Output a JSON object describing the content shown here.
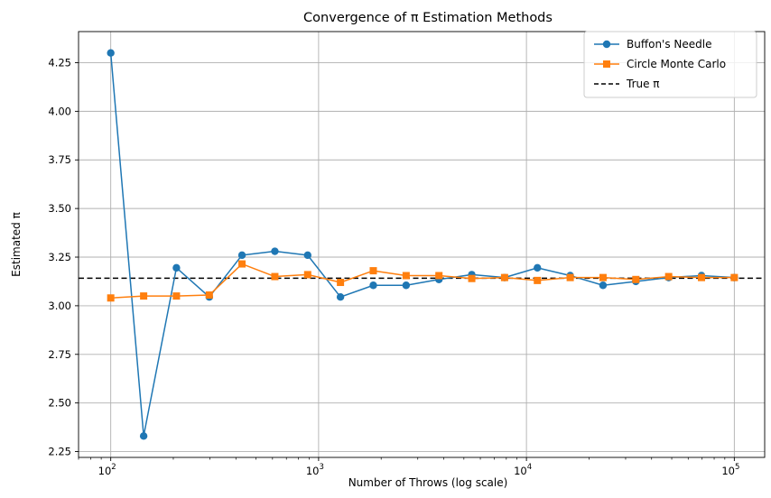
{
  "chart_data": {
    "type": "line",
    "title": "Convergence of π Estimation Methods",
    "xlabel": "Number of Throws (log scale)",
    "ylabel": "Estimated π",
    "x_scale": "log",
    "xlim": [
      70,
      140000
    ],
    "ylim": [
      2.22,
      4.41
    ],
    "x_ticks": [
      {
        "value": 100,
        "base": "10",
        "exp": "2"
      },
      {
        "value": 1000,
        "base": "10",
        "exp": "3"
      },
      {
        "value": 10000,
        "base": "10",
        "exp": "4"
      },
      {
        "value": 100000,
        "base": "10",
        "exp": "5"
      }
    ],
    "y_ticks": [
      "2.25",
      "2.50",
      "2.75",
      "3.00",
      "3.25",
      "3.50",
      "3.75",
      "4.00",
      "4.25"
    ],
    "grid": true,
    "legend_position": "top-right",
    "x": [
      100,
      144,
      207,
      298,
      428,
      616,
      886,
      1274,
      1833,
      2637,
      3793,
      5456,
      7848,
      11288,
      16238,
      23357,
      33598,
      48329,
      69519,
      100000
    ],
    "series": [
      {
        "name": "Buffon's Needle",
        "color": "#1f77b4",
        "marker": "circle",
        "line_style": "solid",
        "values": [
          4.3,
          2.33,
          3.195,
          3.045,
          3.26,
          3.28,
          3.26,
          3.045,
          3.105,
          3.105,
          3.135,
          3.16,
          3.145,
          3.195,
          3.155,
          3.105,
          3.125,
          3.145,
          3.155,
          3.145
        ]
      },
      {
        "name": "Circle Monte Carlo",
        "color": "#ff7f0e",
        "marker": "square",
        "line_style": "solid",
        "values": [
          3.04,
          3.05,
          3.05,
          3.055,
          3.215,
          3.15,
          3.16,
          3.12,
          3.18,
          3.155,
          3.155,
          3.14,
          3.145,
          3.13,
          3.145,
          3.145,
          3.135,
          3.15,
          3.145,
          3.145
        ]
      }
    ],
    "reference_line": {
      "name": "True π",
      "value": 3.14159,
      "color": "#000000",
      "line_style": "dashed"
    }
  }
}
